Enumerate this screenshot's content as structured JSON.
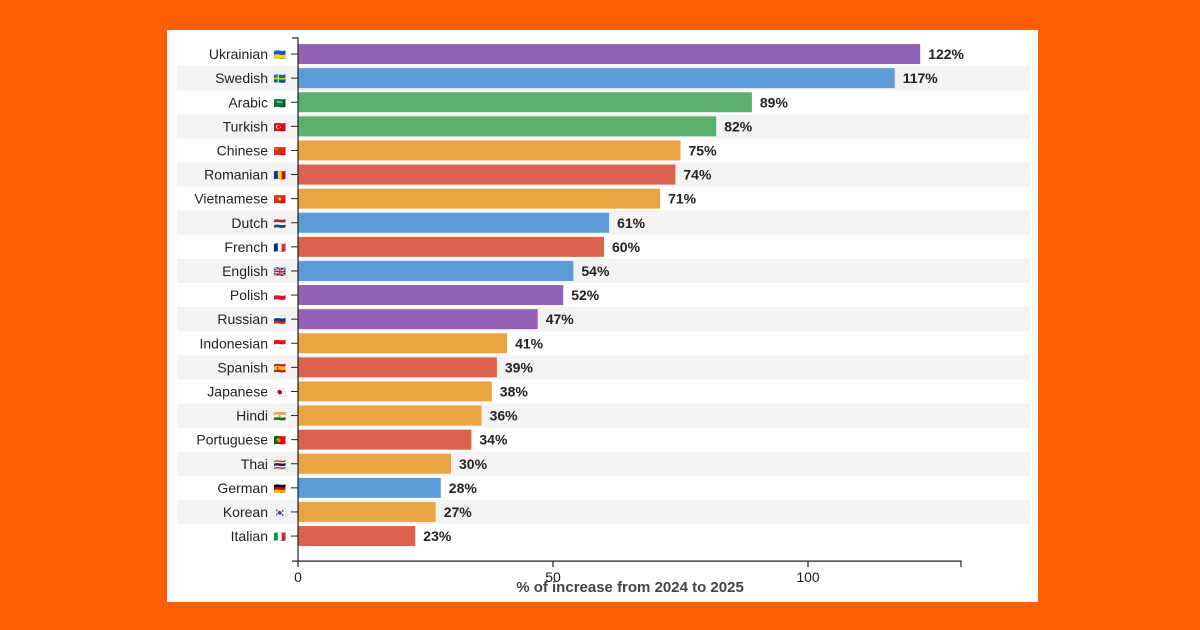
{
  "chart_data": {
    "type": "bar",
    "orientation": "horizontal",
    "title": "",
    "xlabel": "% of increase from 2024 to 2025",
    "ylabel": "",
    "xlim": [
      0,
      130
    ],
    "xticks": [
      0,
      50,
      100
    ],
    "value_suffix": "%",
    "categories": [
      "Ukrainian",
      "Swedish",
      "Arabic",
      "Turkish",
      "Chinese",
      "Romanian",
      "Vietnamese",
      "Dutch",
      "French",
      "English",
      "Polish",
      "Russian",
      "Indonesian",
      "Spanish",
      "Japanese",
      "Hindi",
      "Portuguese",
      "Thai",
      "German",
      "Korean",
      "Italian"
    ],
    "flags": [
      "🇺🇦",
      "🇸🇪",
      "🇸🇦",
      "🇹🇷",
      "🇨🇳",
      "🇷🇴",
      "🇻🇳",
      "🇳🇱",
      "🇫🇷",
      "🇬🇧",
      "🇵🇱",
      "🇷🇺",
      "🇮🇩",
      "🇪🇸",
      "🇯🇵",
      "🇮🇳",
      "🇵🇹",
      "🇹🇭",
      "🇩🇪",
      "🇰🇷",
      "🇮🇹"
    ],
    "values": [
      122,
      117,
      89,
      82,
      75,
      74,
      71,
      61,
      60,
      54,
      52,
      47,
      41,
      39,
      38,
      36,
      34,
      30,
      28,
      27,
      23
    ],
    "color_groups": [
      "purple",
      "blue",
      "green",
      "green",
      "orange",
      "red",
      "orange",
      "blue",
      "red",
      "blue",
      "purple",
      "purple",
      "orange",
      "red",
      "orange",
      "orange",
      "red",
      "orange",
      "blue",
      "orange",
      "red"
    ],
    "colors": {
      "purple": "#9462b5",
      "blue": "#5b9bd8",
      "green": "#5bb06c",
      "orange": "#eaa444",
      "red": "#dc614e"
    },
    "stripe_color": "#f3f3f3",
    "grid": false
  }
}
